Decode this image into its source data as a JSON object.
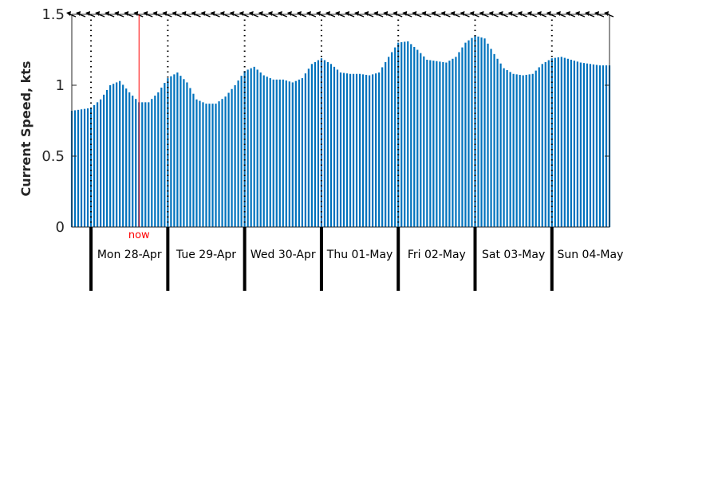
{
  "chart_data": {
    "type": "bar",
    "ylabel": "Current Speed, kts",
    "ylim": [
      0,
      1.5
    ],
    "yticks": [
      "0",
      "0.5",
      "1",
      "1.5"
    ],
    "time_range_hours": [
      -6,
      162
    ],
    "bar_interval_hours": 1,
    "bar_color": "#0072BD",
    "now_hours": 15,
    "now_label": "now",
    "now_color": "#FF0000",
    "days": [
      "Mon 28-Apr",
      "Tue 29-Apr",
      "Wed 30-Apr",
      "Thu 01-May",
      "Fri 02-May",
      "Sat 03-May",
      "Sun 04-May"
    ],
    "speed_profile": {
      "hours": [
        -6,
        0,
        3,
        6,
        9,
        12,
        15,
        18,
        21,
        24,
        27,
        30,
        33,
        36,
        39,
        42,
        45,
        48,
        51,
        54,
        57,
        60,
        63,
        66,
        69,
        72,
        75,
        78,
        81,
        84,
        87,
        90,
        93,
        96,
        99,
        102,
        105,
        108,
        111,
        114,
        117,
        120,
        123,
        126,
        129,
        132,
        135,
        138,
        141,
        144,
        147,
        150,
        153,
        156,
        159,
        162
      ],
      "kts": [
        0.82,
        0.84,
        0.9,
        1.0,
        1.03,
        0.95,
        0.88,
        0.88,
        0.95,
        1.05,
        1.09,
        1.02,
        0.9,
        0.87,
        0.87,
        0.92,
        1.0,
        1.1,
        1.13,
        1.07,
        1.04,
        1.04,
        1.02,
        1.05,
        1.15,
        1.19,
        1.15,
        1.09,
        1.08,
        1.08,
        1.07,
        1.09,
        1.2,
        1.3,
        1.31,
        1.25,
        1.18,
        1.17,
        1.16,
        1.2,
        1.3,
        1.35,
        1.33,
        1.22,
        1.12,
        1.08,
        1.07,
        1.08,
        1.15,
        1.19,
        1.2,
        1.18,
        1.16,
        1.15,
        1.14,
        1.14
      ]
    },
    "direction_arrows": "northwest-pointing arrows along the top of the plot, every 3 hours",
    "grid": false,
    "legend": "none"
  }
}
